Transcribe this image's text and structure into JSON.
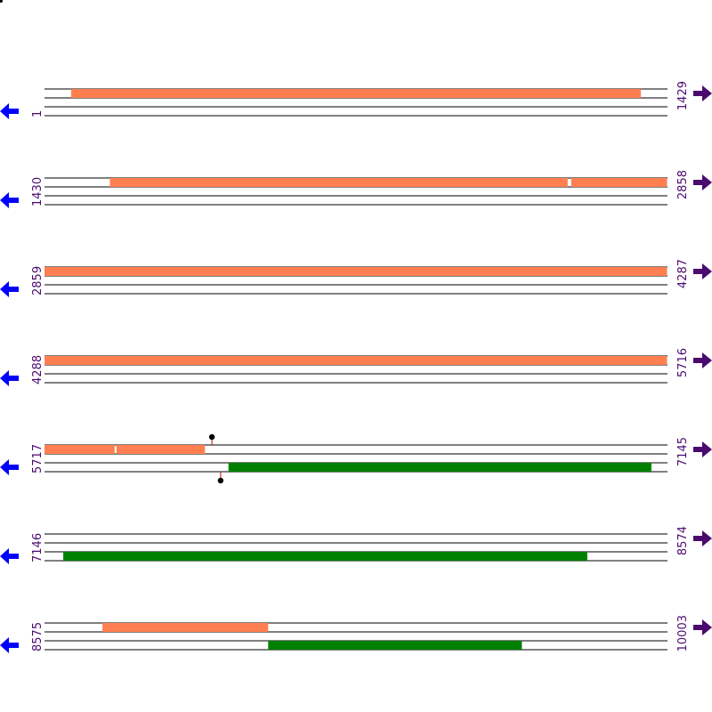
{
  "colors": {
    "forward_feature": "#ff7f50",
    "reverse_feature": "#008000",
    "left_arrow": "#0000ff",
    "right_arrow": "#4b0a6e",
    "coordinate_text": "#4b0a6e",
    "lines": "#000000"
  },
  "icons": {
    "left": "arrow-left-icon",
    "right": "arrow-right-icon"
  },
  "sequence": {
    "length": 10003,
    "row_span": 1429
  },
  "rows": [
    {
      "start": "1",
      "end": "1429",
      "features": [
        {
          "strand": "forward",
          "from": 62,
          "to": 1369
        }
      ],
      "markers": []
    },
    {
      "start": "1430",
      "end": "2858",
      "features": [
        {
          "strand": "forward",
          "from": 1580,
          "to": 2630
        },
        {
          "strand": "forward",
          "from": 2638,
          "to": 2858
        }
      ],
      "markers": []
    },
    {
      "start": "2859",
      "end": "4287",
      "features": [
        {
          "strand": "forward",
          "from": 2859,
          "to": 4287
        }
      ],
      "markers": []
    },
    {
      "start": "4288",
      "end": "5716",
      "features": [
        {
          "strand": "forward",
          "from": 4288,
          "to": 5716
        }
      ],
      "markers": []
    },
    {
      "start": "5717",
      "end": "7145",
      "features": [
        {
          "strand": "forward",
          "from": 5717,
          "to": 5878
        },
        {
          "strand": "forward",
          "from": 5882,
          "to": 6085
        },
        {
          "strand": "reverse",
          "from": 6139,
          "to": 7109
        }
      ],
      "markers": [
        {
          "strand": "forward",
          "pos": 6101
        },
        {
          "strand": "reverse",
          "pos": 6121
        }
      ]
    },
    {
      "start": "7146",
      "end": "8574",
      "features": [
        {
          "strand": "reverse",
          "from": 7189,
          "to": 8391
        }
      ],
      "markers": []
    },
    {
      "start": "8575",
      "end": "10003",
      "features": [
        {
          "strand": "forward",
          "from": 8708,
          "to": 9088
        },
        {
          "strand": "reverse",
          "from": 9088,
          "to": 9670
        }
      ],
      "markers": []
    }
  ]
}
